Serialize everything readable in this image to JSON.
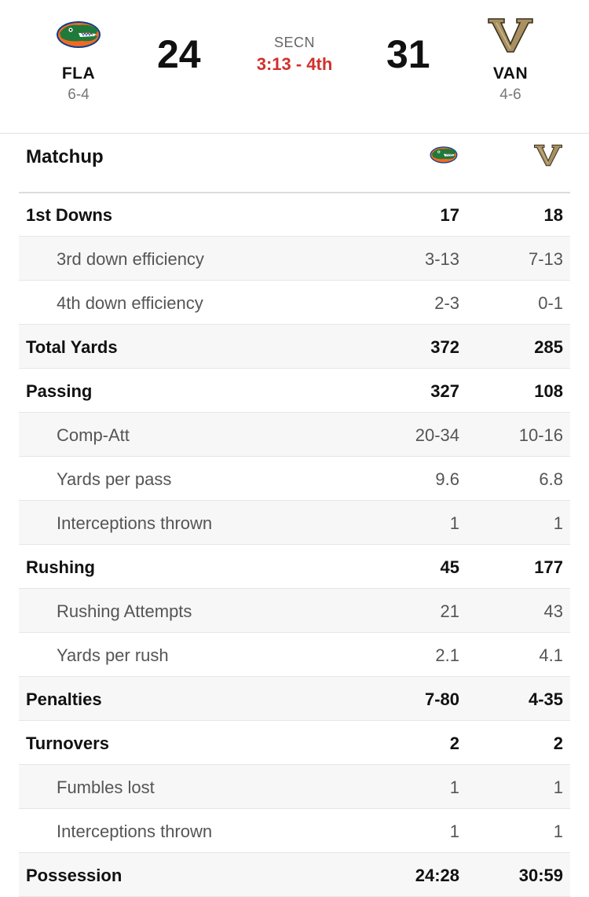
{
  "header": {
    "away": {
      "abbr": "FLA",
      "record": "6-4",
      "score": "24",
      "logo_icon": "florida-gator-logo-icon"
    },
    "home": {
      "abbr": "VAN",
      "record": "4-6",
      "score": "31",
      "logo_icon": "vanderbilt-v-logo-icon"
    },
    "network": "SECN",
    "clock": "3:13 - 4th"
  },
  "matchup": {
    "title": "Matchup"
  },
  "stats": [
    {
      "label": "1st Downs",
      "away": "17",
      "home": "18",
      "kind": "main"
    },
    {
      "label": "3rd down efficiency",
      "away": "3-13",
      "home": "7-13",
      "kind": "sub"
    },
    {
      "label": "4th down efficiency",
      "away": "2-3",
      "home": "0-1",
      "kind": "sub"
    },
    {
      "label": "Total Yards",
      "away": "372",
      "home": "285",
      "kind": "main"
    },
    {
      "label": "Passing",
      "away": "327",
      "home": "108",
      "kind": "main"
    },
    {
      "label": "Comp-Att",
      "away": "20-34",
      "home": "10-16",
      "kind": "sub"
    },
    {
      "label": "Yards per pass",
      "away": "9.6",
      "home": "6.8",
      "kind": "sub"
    },
    {
      "label": "Interceptions thrown",
      "away": "1",
      "home": "1",
      "kind": "sub"
    },
    {
      "label": "Rushing",
      "away": "45",
      "home": "177",
      "kind": "main"
    },
    {
      "label": "Rushing Attempts",
      "away": "21",
      "home": "43",
      "kind": "sub"
    },
    {
      "label": "Yards per rush",
      "away": "2.1",
      "home": "4.1",
      "kind": "sub"
    },
    {
      "label": "Penalties",
      "away": "7-80",
      "home": "4-35",
      "kind": "main"
    },
    {
      "label": "Turnovers",
      "away": "2",
      "home": "2",
      "kind": "main"
    },
    {
      "label": "Fumbles lost",
      "away": "1",
      "home": "1",
      "kind": "sub"
    },
    {
      "label": "Interceptions thrown",
      "away": "1",
      "home": "1",
      "kind": "sub"
    },
    {
      "label": "Possession",
      "away": "24:28",
      "home": "30:59",
      "kind": "main"
    }
  ],
  "colors": {
    "clock_red": "#d0312d",
    "gator_green": "#1f7a3a",
    "gator_blue": "#0a3d91",
    "gator_orange": "#f26a21",
    "vandy_gold": "#a89060"
  }
}
